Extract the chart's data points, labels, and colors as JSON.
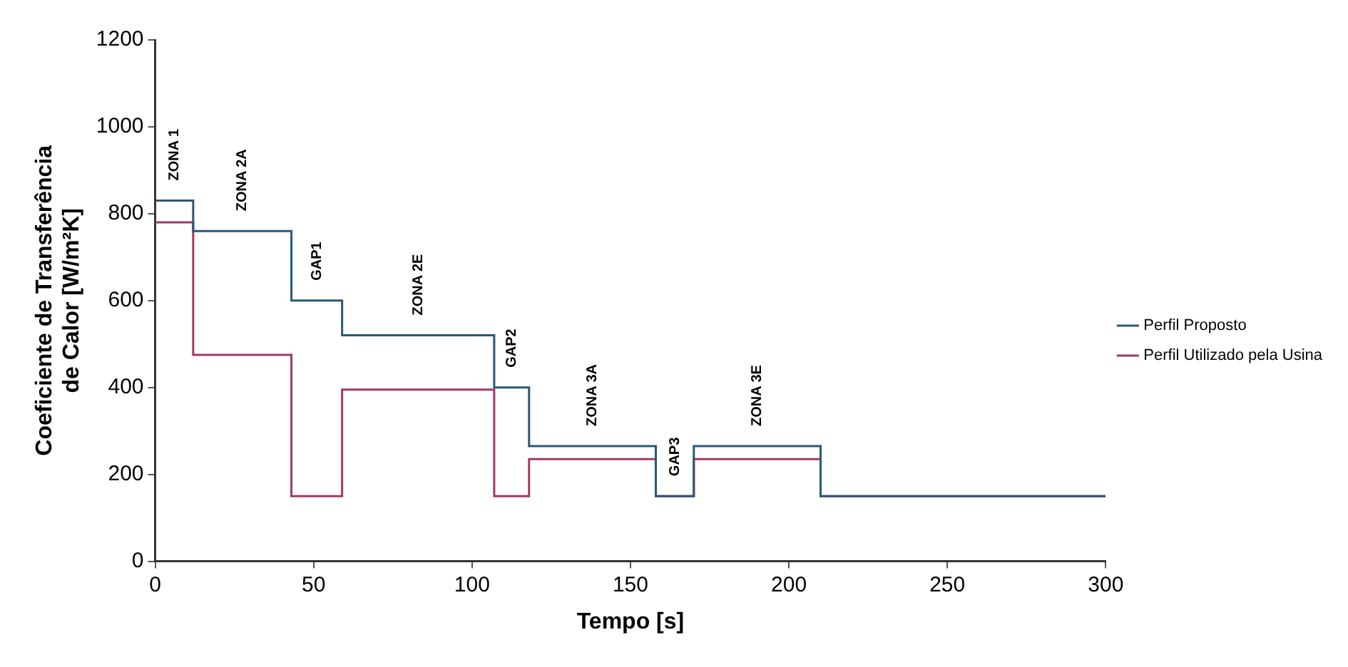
{
  "chart_data": {
    "type": "step",
    "xlabel": "Tempo [s]",
    "ylabel": "Coeficiente de Transferência de Calor [W/m²K]",
    "x": [
      0,
      12,
      43,
      59,
      107,
      118,
      158,
      170,
      210,
      300
    ],
    "series": [
      {
        "name": "Perfil Proposto",
        "color": "#2b5877",
        "values": [
          830,
          760,
          600,
          520,
          400,
          265,
          150,
          265,
          150,
          150
        ]
      },
      {
        "name": "Perfil Utilizado pela Usina",
        "color": "#a03a68",
        "values": [
          780,
          475,
          150,
          395,
          150,
          235,
          150,
          235,
          150,
          150
        ]
      }
    ],
    "xlim": [
      0,
      300
    ],
    "xticks": [
      0,
      50,
      100,
      150,
      200,
      250,
      300
    ],
    "ylim": [
      0,
      1200
    ],
    "yticks": [
      0,
      200,
      400,
      600,
      800,
      1000,
      1200
    ],
    "grid": false,
    "legend": "right",
    "marker": "none",
    "line_style": "solid",
    "annotations": [
      "ZONA 1",
      "ZONA 2A",
      "GAP1",
      "ZONA 2E",
      "GAP2",
      "ZONA 3A",
      "GAP3",
      "ZONA 3E"
    ]
  }
}
